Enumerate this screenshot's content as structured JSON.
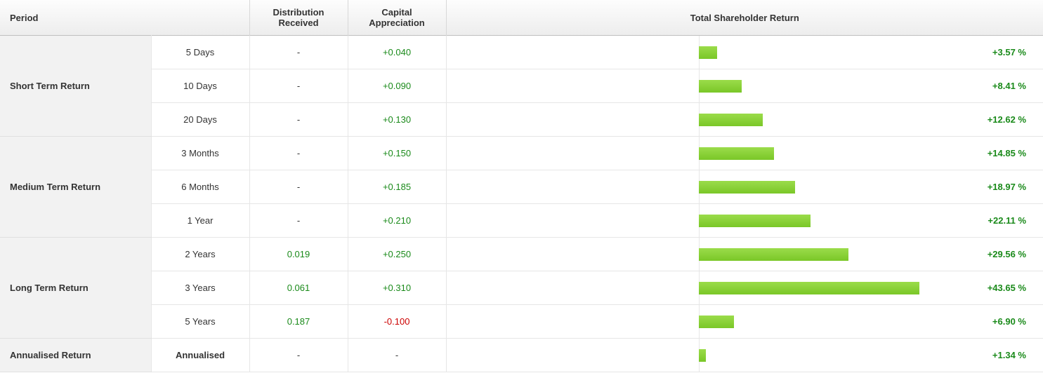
{
  "colors": {
    "positive": "#1a8a1a",
    "negative": "#cc0000",
    "neutral": "#333333",
    "bar_gradient_top": "#9bdc4a",
    "bar_gradient_bottom": "#7ac728"
  },
  "header": {
    "period": "Period",
    "distribution": "Distribution Received",
    "capital": "Capital Appreciation",
    "total": "Total Shareholder Return"
  },
  "bar_max_percent": 50,
  "groups": [
    {
      "label": "Short Term Return",
      "rows": [
        {
          "period": "5 Days",
          "dist": "-",
          "dist_color": "neutral",
          "cap": "+0.040",
          "cap_color": "positive",
          "pct_value": 3.57,
          "pct": "+3.57 %",
          "pct_color": "positive"
        },
        {
          "period": "10 Days",
          "dist": "-",
          "dist_color": "neutral",
          "cap": "+0.090",
          "cap_color": "positive",
          "pct_value": 8.41,
          "pct": "+8.41 %",
          "pct_color": "positive"
        },
        {
          "period": "20 Days",
          "dist": "-",
          "dist_color": "neutral",
          "cap": "+0.130",
          "cap_color": "positive",
          "pct_value": 12.62,
          "pct": "+12.62 %",
          "pct_color": "positive"
        }
      ]
    },
    {
      "label": "Medium Term Return",
      "rows": [
        {
          "period": "3 Months",
          "dist": "-",
          "dist_color": "neutral",
          "cap": "+0.150",
          "cap_color": "positive",
          "pct_value": 14.85,
          "pct": "+14.85 %",
          "pct_color": "positive"
        },
        {
          "period": "6 Months",
          "dist": "-",
          "dist_color": "neutral",
          "cap": "+0.185",
          "cap_color": "positive",
          "pct_value": 18.97,
          "pct": "+18.97 %",
          "pct_color": "positive"
        },
        {
          "period": "1 Year",
          "dist": "-",
          "dist_color": "neutral",
          "cap": "+0.210",
          "cap_color": "positive",
          "pct_value": 22.11,
          "pct": "+22.11 %",
          "pct_color": "positive"
        }
      ]
    },
    {
      "label": "Long Term Return",
      "rows": [
        {
          "period": "2 Years",
          "dist": "0.019",
          "dist_color": "positive",
          "cap": "+0.250",
          "cap_color": "positive",
          "pct_value": 29.56,
          "pct": "+29.56 %",
          "pct_color": "positive"
        },
        {
          "period": "3 Years",
          "dist": "0.061",
          "dist_color": "positive",
          "cap": "+0.310",
          "cap_color": "positive",
          "pct_value": 43.65,
          "pct": "+43.65 %",
          "pct_color": "positive"
        },
        {
          "period": "5 Years",
          "dist": "0.187",
          "dist_color": "positive",
          "cap": "-0.100",
          "cap_color": "negative",
          "pct_value": 6.9,
          "pct": "+6.90 %",
          "pct_color": "positive"
        }
      ]
    },
    {
      "label": "Annualised Return",
      "rows": [
        {
          "period": "Annualised",
          "period_bold": true,
          "dist": "-",
          "dist_color": "neutral",
          "cap": "-",
          "cap_color": "neutral",
          "pct_value": 1.34,
          "pct": "+1.34 %",
          "pct_color": "positive"
        }
      ]
    }
  ]
}
